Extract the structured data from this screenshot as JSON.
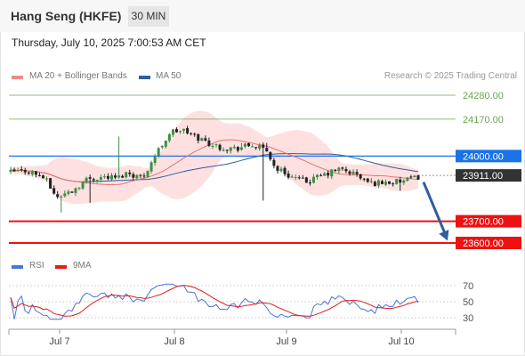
{
  "header": {
    "title": "Hang Seng (HKFE)",
    "timeframe": "30 MIN",
    "datetime": "Thursday, July 10, 2025 7:00:53 AM CET",
    "background": "#f7f7f7"
  },
  "legend": {
    "items": [
      {
        "label": "MA 20 + Bollinger Bands",
        "color": "#f28b82"
      },
      {
        "label": "MA 50",
        "color": "#2e5e9c"
      }
    ],
    "credit": "Research © 2025 Trading Central"
  },
  "chart_data": [
    {
      "type": "candlestick",
      "ylim": [
        23510,
        24370
      ],
      "x_labels": [
        "Jul 7",
        "Jul 8",
        "Jul 9",
        "Jul 10"
      ],
      "levels": [
        {
          "value": 24280.0,
          "label": "24280.00",
          "style": "target",
          "color": "#6aa84f"
        },
        {
          "value": 24170.0,
          "label": "24170.00",
          "style": "target",
          "color": "#6aa84f"
        },
        {
          "value": 24000.0,
          "label": "24000.00",
          "style": "pivot",
          "color": "#1a73e8"
        },
        {
          "value": 23911.0,
          "label": "23911.00",
          "style": "last",
          "color": "#333333"
        },
        {
          "value": 23700.0,
          "label": "23700.00",
          "style": "support",
          "color": "#ee1111"
        },
        {
          "value": 23600.0,
          "label": "23600.00",
          "style": "support",
          "color": "#ee1111"
        }
      ],
      "forecast_arrow": {
        "from": 23880,
        "to": 23610,
        "color": "#2e5e9c"
      },
      "colors": {
        "up": "#3c8f47",
        "down": "#222222",
        "ma20": "#e57373",
        "bands": "#ffd6d6",
        "ma50": "#2e5e9c"
      }
    },
    {
      "type": "line",
      "title": "RSI",
      "series": [
        {
          "name": "RSI",
          "color": "#4a74d9"
        },
        {
          "name": "9MA",
          "color": "#e21b1b"
        }
      ],
      "ylim": [
        20,
        80
      ],
      "yticks": [
        70,
        50,
        30
      ]
    }
  ]
}
